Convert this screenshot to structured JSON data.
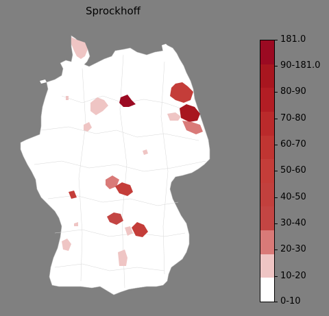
{
  "title": "Sprockhoff",
  "legend": {
    "labels": [
      "0-10",
      "10-20",
      "20-30",
      "30-40",
      "40-50",
      "50-60",
      "60-70",
      "70-80",
      "80-90",
      "90-181.0",
      "181.0"
    ],
    "colors_top_to_bottom": [
      "#9b0a22",
      "#a8161f",
      "#b21d24",
      "#ba2a2b",
      "#c03532",
      "#c43d39",
      "#c2403d",
      "#c34543",
      "#d97a78",
      "#efc5c4",
      "#ffffff"
    ]
  },
  "map": {
    "base_fill": "#ffffff",
    "border_color": "#c8c8c8",
    "background": "#808080"
  }
}
